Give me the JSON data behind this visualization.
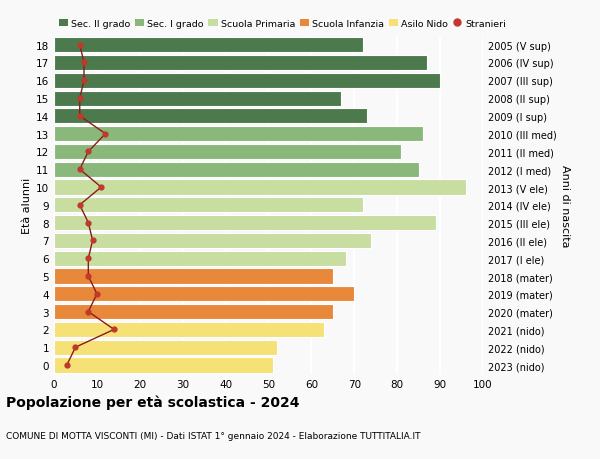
{
  "ages": [
    0,
    1,
    2,
    3,
    4,
    5,
    6,
    7,
    8,
    9,
    10,
    11,
    12,
    13,
    14,
    15,
    16,
    17,
    18
  ],
  "years": [
    "2023 (nido)",
    "2022 (nido)",
    "2021 (nido)",
    "2020 (mater)",
    "2019 (mater)",
    "2018 (mater)",
    "2017 (I ele)",
    "2016 (II ele)",
    "2015 (III ele)",
    "2014 (IV ele)",
    "2013 (V ele)",
    "2012 (I med)",
    "2011 (II med)",
    "2010 (III med)",
    "2009 (I sup)",
    "2008 (II sup)",
    "2007 (III sup)",
    "2006 (IV sup)",
    "2005 (V sup)"
  ],
  "bar_values": [
    51,
    52,
    63,
    65,
    70,
    65,
    68,
    74,
    89,
    72,
    96,
    85,
    81,
    86,
    73,
    67,
    90,
    87,
    72
  ],
  "stranieri_values": [
    3,
    5,
    14,
    8,
    10,
    8,
    8,
    9,
    8,
    6,
    11,
    6,
    8,
    12,
    6,
    6,
    7,
    7,
    6
  ],
  "bar_colors": [
    "#f5e176",
    "#f5e176",
    "#f5e176",
    "#e8883a",
    "#e8883a",
    "#e8883a",
    "#c8dda0",
    "#c8dda0",
    "#c8dda0",
    "#c8dda0",
    "#c8dda0",
    "#8ab87a",
    "#8ab87a",
    "#8ab87a",
    "#4d7a4d",
    "#4d7a4d",
    "#4d7a4d",
    "#4d7a4d",
    "#4d7a4d"
  ],
  "legend_colors": [
    "#4d7a4d",
    "#8ab87a",
    "#c8dda0",
    "#e8883a",
    "#f5e176",
    "#c0392b"
  ],
  "legend_labels": [
    "Sec. II grado",
    "Sec. I grado",
    "Scuola Primaria",
    "Scuola Infanzia",
    "Asilo Nido",
    "Stranieri"
  ],
  "title": "Popolazione per età scolastica - 2024",
  "subtitle": "COMUNE DI MOTTA VISCONTI (MI) - Dati ISTAT 1° gennaio 2024 - Elaborazione TUTTITALIA.IT",
  "ylabel_left": "Età alunni",
  "ylabel_right": "Anni di nascita",
  "xlim": [
    0,
    100
  ],
  "background_color": "#f9f9f9",
  "grid_color": "#ffffff",
  "stranieri_color": "#c0392b",
  "stranieri_line_color": "#8b1a1a"
}
